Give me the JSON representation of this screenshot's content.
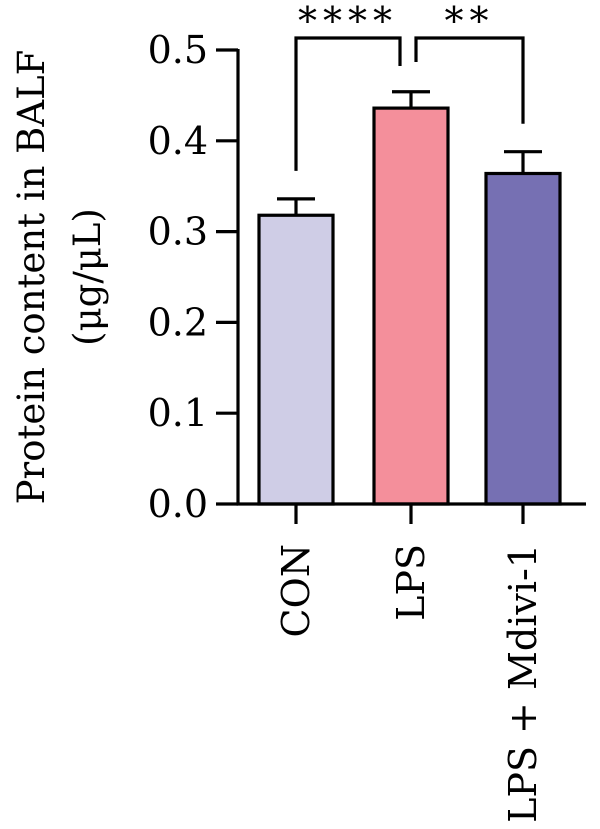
{
  "chart_data": {
    "type": "bar",
    "title": "",
    "xlabel": "",
    "ylabel_lines": [
      "Protein content in BALF",
      "(μg/μL)"
    ],
    "categories": [
      "CON",
      "LPS",
      "LPS + Mdivi-1"
    ],
    "values": [
      0.318,
      0.436,
      0.364
    ],
    "errors": [
      0.018,
      0.018,
      0.024
    ],
    "bar_colors": [
      "#cfcde6",
      "#f48f9b",
      "#7670b3"
    ],
    "ylim": [
      0,
      0.5
    ],
    "yticks": [
      "0.0",
      "0.1",
      "0.2",
      "0.3",
      "0.4",
      "0.5"
    ],
    "grid": false,
    "significance": [
      {
        "from": 0,
        "to": 1,
        "label": "****"
      },
      {
        "from": 1,
        "to": 2,
        "label": "**"
      }
    ]
  }
}
